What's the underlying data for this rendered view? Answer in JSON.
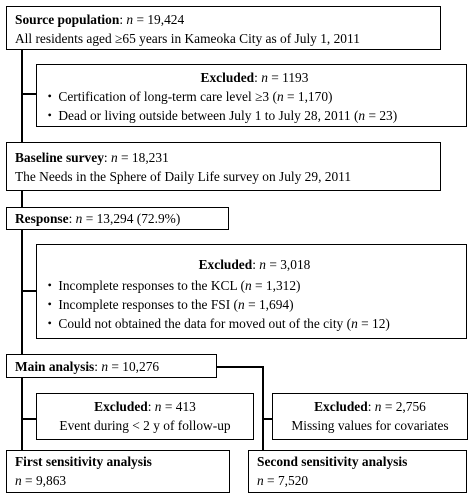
{
  "source": {
    "label": "Source population",
    "sep": ": ",
    "n_sym": "n",
    "n_eq": " = 19,424",
    "desc": "All residents aged ≥65 years in Kameoka City as of July 1, 2011"
  },
  "excluded1": {
    "label": "Excluded",
    "sep": ": ",
    "n_sym": "n",
    "n_eq": " = 1193",
    "items": [
      {
        "text": "Certification of long-term care level ≥3 (",
        "n_sym": "n",
        "n_eq": " = 1,170)"
      },
      {
        "text": "Dead or living outside between July 1 to July 28, 2011 (",
        "n_sym": "n",
        "n_eq": " = 23)"
      }
    ]
  },
  "baseline": {
    "label": "Baseline survey",
    "sep": ": ",
    "n_sym": "n",
    "n_eq": " = 18,231",
    "desc": "The Needs in the Sphere of Daily Life survey on July 29, 2011"
  },
  "response": {
    "label": "Response",
    "sep": ": ",
    "n_sym": "n",
    "n_eq": " = 13,294 (72.9%)"
  },
  "excluded2": {
    "label": "Excluded",
    "sep": ": ",
    "n_sym": "n",
    "n_eq": " = 3,018",
    "items": [
      {
        "text": "Incomplete responses to the KCL (",
        "n_sym": "n",
        "n_eq": " = 1,312)"
      },
      {
        "text": "Incomplete responses to the FSI (",
        "n_sym": "n",
        "n_eq": " = 1,694)"
      },
      {
        "text": "Could not obtained the data for moved out of the city (",
        "n_sym": "n",
        "n_eq": " = 12)"
      }
    ]
  },
  "main": {
    "label": "Main analysis",
    "sep": ": ",
    "n_sym": "n",
    "n_eq": " = 10,276"
  },
  "excluded3": {
    "label": "Excluded",
    "sep": ": ",
    "n_sym": "n",
    "n_eq": " = 413",
    "desc": "Event during < 2 y of follow-up"
  },
  "excluded4": {
    "label": "Excluded",
    "sep": ": ",
    "n_sym": "n",
    "n_eq": " = 2,756",
    "desc": "Missing values for covariates"
  },
  "first": {
    "label": "First sensitivity analysis",
    "n_sym": "n",
    "n_eq": " = 9,863"
  },
  "second": {
    "label": "Second sensitivity analysis",
    "n_sym": "n",
    "n_eq": " = 7,520"
  }
}
